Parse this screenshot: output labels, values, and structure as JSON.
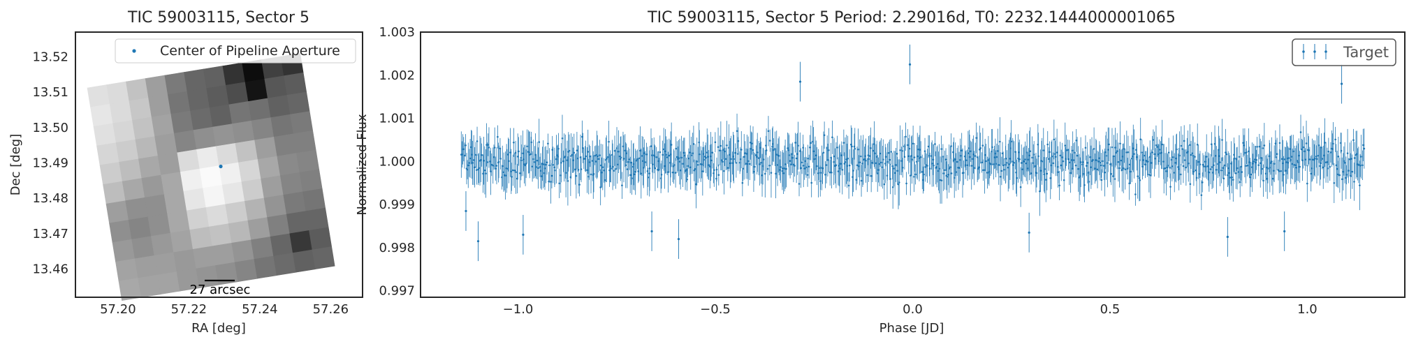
{
  "colors": {
    "accent": "#1f77b4",
    "axis": "#262626",
    "legend_border": "#555555"
  },
  "chart_data": [
    {
      "type": "heatmap",
      "title": "TIC 59003115, Sector 5",
      "xlabel": "RA [deg]",
      "ylabel": "Dec [deg]",
      "xlim": [
        57.188,
        57.269
      ],
      "ylim": [
        13.452,
        13.527
      ],
      "xticks": [
        "57.20",
        "57.22",
        "57.24",
        "57.26"
      ],
      "xtick_values": [
        57.2,
        57.22,
        57.24,
        57.26
      ],
      "yticks": [
        "13.52",
        "13.51",
        "13.50",
        "13.49",
        "13.48",
        "13.47",
        "13.46"
      ],
      "ytick_values": [
        13.52,
        13.51,
        13.5,
        13.49,
        13.48,
        13.47,
        13.46
      ],
      "legend": {
        "label": "Center of Pipeline Aperture",
        "location": "top-right"
      },
      "aperture_center": {
        "ra": 57.229,
        "dec": 13.489
      },
      "scale_bar_label": "27 arcsec",
      "grid": false,
      "pixel_grid": {
        "rows": 11,
        "cols": 11,
        "brightness": [
          [
            0.88,
            0.86,
            0.76,
            0.62,
            0.48,
            0.4,
            0.38,
            0.2,
            0.05,
            0.25,
            0.2
          ],
          [
            0.9,
            0.86,
            0.78,
            0.62,
            0.46,
            0.4,
            0.36,
            0.3,
            0.08,
            0.34,
            0.36
          ],
          [
            0.88,
            0.84,
            0.76,
            0.64,
            0.48,
            0.42,
            0.38,
            0.46,
            0.44,
            0.38,
            0.4
          ],
          [
            0.84,
            0.8,
            0.72,
            0.62,
            0.52,
            0.56,
            0.58,
            0.56,
            0.52,
            0.46,
            0.48
          ],
          [
            0.8,
            0.74,
            0.66,
            0.62,
            0.86,
            0.92,
            0.86,
            0.76,
            0.62,
            0.5,
            0.5
          ],
          [
            0.74,
            0.66,
            0.6,
            0.66,
            0.94,
            0.98,
            0.94,
            0.84,
            0.66,
            0.54,
            0.52
          ],
          [
            0.62,
            0.56,
            0.56,
            0.66,
            0.9,
            0.96,
            0.9,
            0.8,
            0.62,
            0.52,
            0.5
          ],
          [
            0.56,
            0.52,
            0.56,
            0.66,
            0.82,
            0.86,
            0.8,
            0.7,
            0.58,
            0.48,
            0.46
          ],
          [
            0.6,
            0.56,
            0.6,
            0.64,
            0.74,
            0.76,
            0.72,
            0.62,
            0.5,
            0.4,
            0.4
          ],
          [
            0.64,
            0.62,
            0.62,
            0.6,
            0.62,
            0.62,
            0.58,
            0.5,
            0.4,
            0.22,
            0.36
          ],
          [
            0.66,
            0.64,
            0.64,
            0.6,
            0.58,
            0.56,
            0.52,
            0.46,
            0.42,
            0.38,
            0.4
          ]
        ]
      }
    },
    {
      "type": "scatter",
      "title": "TIC 59003115, Sector 5 Period: 2.29016d, T0: 2232.1444000001065",
      "xlabel": "Phase [JD]",
      "ylabel": "Normalized Flux",
      "xlim": [
        -1.247,
        1.247
      ],
      "ylim": [
        0.99685,
        1.003
      ],
      "xticks": [
        "−1.0",
        "−0.5",
        "0.0",
        "0.5",
        "1.0"
      ],
      "xtick_values": [
        -1.0,
        -0.5,
        0.0,
        0.5,
        1.0
      ],
      "yticks": [
        "1.003",
        "1.002",
        "1.001",
        "1.000",
        "0.999",
        "0.998",
        "0.997"
      ],
      "ytick_values": [
        1.003,
        1.002,
        1.001,
        1.0,
        0.999,
        0.998,
        0.997
      ],
      "legend": {
        "label": "Target",
        "location": "top-right"
      },
      "grid": false,
      "series": [
        {
          "name": "Target",
          "description": "Phase-folded light curve with error bars; about 1,000 points uniformly spanning phase −1.145 to 1.145, flux centered at 1.0000 with scatter ~0.0005 and error bars ~±0.0004; notable outliers below.",
          "x_range": [
            -1.145,
            1.145
          ],
          "n_points": 1000,
          "flux_mean": 1.0,
          "flux_scatter": 0.00048,
          "error_mean": 0.0004,
          "outliers": [
            {
              "x": -1.132,
              "y": 0.99885
            },
            {
              "x": -1.101,
              "y": 0.99815
            },
            {
              "x": -0.987,
              "y": 0.9983
            },
            {
              "x": -0.661,
              "y": 0.99838
            },
            {
              "x": -0.593,
              "y": 0.9982
            },
            {
              "x": -0.285,
              "y": 1.00185
            },
            {
              "x": -0.007,
              "y": 1.00225
            },
            {
              "x": 0.295,
              "y": 0.99835
            },
            {
              "x": 0.798,
              "y": 0.99825
            },
            {
              "x": 0.942,
              "y": 0.99838
            },
            {
              "x": 1.087,
              "y": 1.0018
            }
          ]
        }
      ]
    }
  ]
}
